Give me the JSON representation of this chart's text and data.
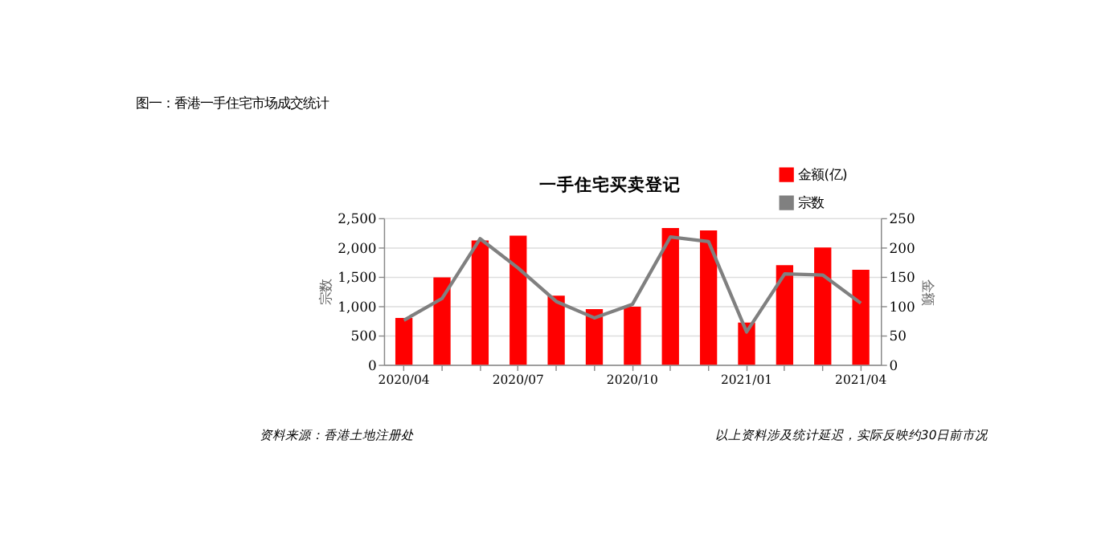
{
  "chart_data": {
    "type": "bar",
    "title": "图一：香港一手住宅市场成交统计",
    "subtitle": "一手住宅买卖登记",
    "ylabel": "宗数",
    "y2label": "金额",
    "categories": [
      "2020/04",
      null,
      null,
      "2020/07",
      null,
      null,
      "2020/10",
      null,
      null,
      "2021/01",
      null,
      null,
      "2021/04"
    ],
    "series": [
      {
        "name": "金额(亿)",
        "axis": "y2",
        "color": "#ff0000",
        "values": [
          80,
          149,
          212,
          220,
          118,
          95,
          99,
          233,
          229,
          72,
          170,
          200,
          162
        ]
      },
      {
        "name": "宗数",
        "type": "line",
        "axis": "y",
        "color": "#808080",
        "values": [
          760,
          1130,
          2150,
          1650,
          1080,
          800,
          1030,
          2180,
          2100,
          560,
          1550,
          1530,
          1050
        ]
      }
    ],
    "ylim": [
      0,
      2500
    ],
    "yticks": [
      0,
      500,
      {
        "value": 1000,
        "label": "1,000"
      },
      {
        "value": 1500,
        "label": "1,500"
      },
      {
        "value": 2000,
        "label": "2,000"
      },
      {
        "value": 2500,
        "label": "2,500"
      }
    ],
    "y2lim": [
      0,
      250
    ],
    "y2ticks": [
      0,
      50,
      100,
      150,
      200,
      250
    ],
    "grid": "y",
    "legend": "top right",
    "annotations": [
      "资料来源：香港土地注册处",
      "以上资料涉及统计延迟，实际反映约30日前市况"
    ]
  }
}
